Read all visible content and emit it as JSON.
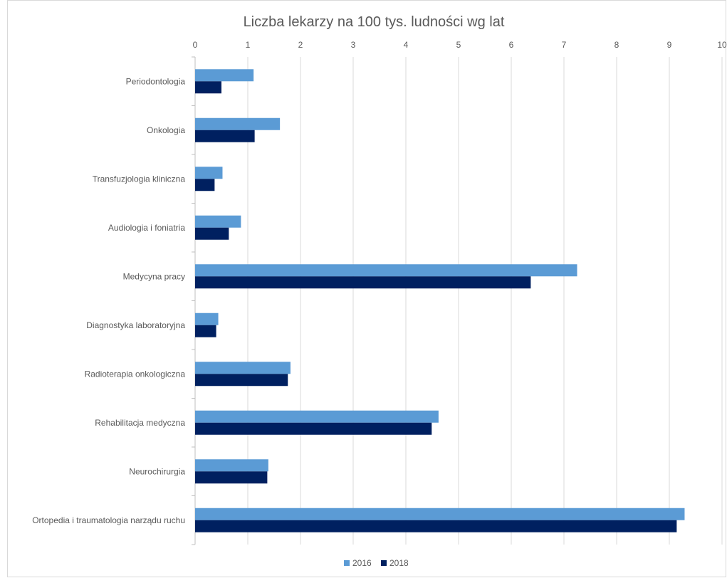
{
  "chart_data": {
    "type": "bar",
    "orientation": "horizontal",
    "title": "Liczba lekarzy na 100 tys. ludności wg lat",
    "xlabel": "",
    "ylabel": "",
    "xlim": [
      0,
      10
    ],
    "x_ticks": [
      "0",
      "1",
      "2",
      "3",
      "4",
      "5",
      "6",
      "7",
      "8",
      "9",
      "10"
    ],
    "x_axis_position": "top",
    "grid": true,
    "legend": "bottom",
    "categories": [
      "Periodontologia",
      "Onkologia",
      "Transfuzjologia kliniczna",
      "Audiologia i foniatria",
      "Medycyna pracy",
      "Diagnostyka laboratoryjna",
      "Radioterapia onkologiczna",
      "Rehabilitacja medyczna",
      "Neurochirurgia",
      "Ortopedia i traumatologia narządu ruchu"
    ],
    "series": [
      {
        "name": "2016",
        "color": "#5b9bd5",
        "values": [
          1.11,
          1.61,
          0.52,
          0.87,
          7.25,
          0.44,
          1.81,
          4.62,
          1.39,
          9.29
        ]
      },
      {
        "name": "2018",
        "color": "#002060",
        "values": [
          0.5,
          1.13,
          0.37,
          0.64,
          6.37,
          0.4,
          1.76,
          4.49,
          1.37,
          9.14
        ]
      }
    ]
  }
}
